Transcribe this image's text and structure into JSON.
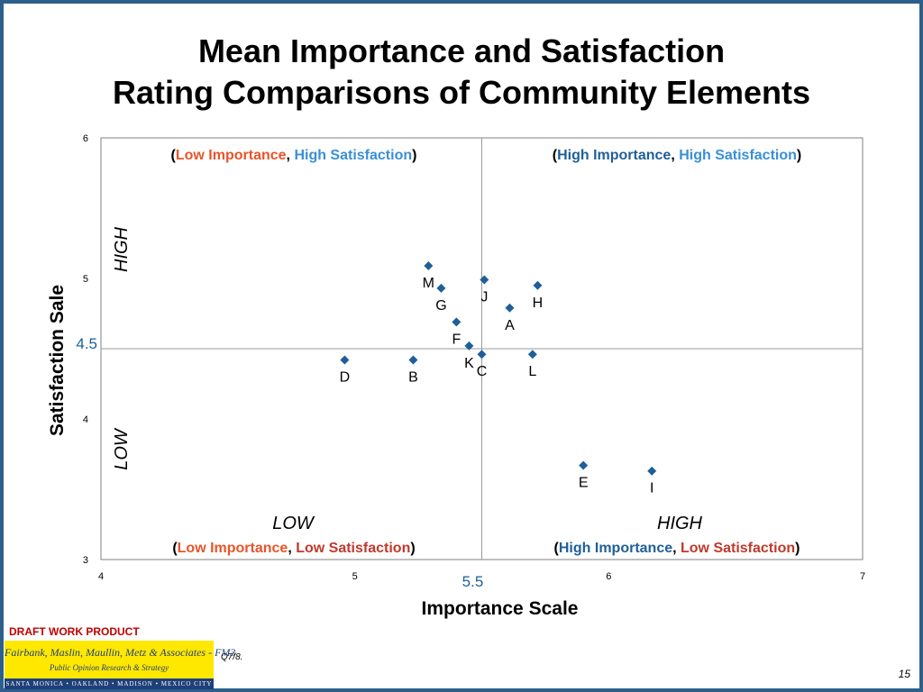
{
  "slide": {
    "title_line1": "Mean Importance and Satisfaction",
    "title_line2": "Rating Comparisons of Community Elements",
    "draft_label": "DRAFT WORK PRODUCT",
    "footnote": "Q7/8.",
    "page_number": "15",
    "logo": {
      "firm": "Fairbank, Maslin, Maullin, Metz & Associates - FM3",
      "tagline": "Public Opinion Research & Strategy",
      "cities": "SANTA MONICA • OAKLAND • MADISON • MEXICO CITY"
    }
  },
  "colors": {
    "marker": "#1f5f99",
    "low": "#e8552a",
    "high_importance": "#1f5f99",
    "high_satisfaction": "#3a8fd6",
    "low_satisfaction": "#c0392b",
    "midline_value_label": "#1f5f99"
  },
  "chart_data": {
    "type": "scatter",
    "xlabel": "Importance Scale",
    "ylabel": "Satisfaction Sale",
    "xlim": [
      4,
      7
    ],
    "ylim": [
      3,
      6
    ],
    "xticks": [
      "4",
      "5",
      "6",
      "7"
    ],
    "yticks": [
      "3",
      "4",
      "5",
      "6"
    ],
    "grid": false,
    "reference_lines": {
      "x": 5.5,
      "y": 4.5,
      "x_label": "5.5",
      "y_label": "4.5"
    },
    "axis_annotations": {
      "y_high": "HIGH",
      "y_low": "LOW",
      "x_low": "LOW",
      "x_high": "HIGH"
    },
    "quadrants": {
      "top_left": {
        "open": "(",
        "importance": "Low Importance",
        "sep": ", ",
        "satisfaction": "High Satisfaction",
        "close": ")"
      },
      "top_right": {
        "open": "(",
        "importance": "High Importance",
        "sep": ", ",
        "satisfaction": "High Satisfaction",
        "close": ")"
      },
      "bottom_left": {
        "open": "(",
        "importance": "Low Importance",
        "sep": ", ",
        "satisfaction": "Low Satisfaction",
        "close": ")"
      },
      "bottom_right": {
        "open": "(",
        "importance": "High Importance",
        "sep": ", ",
        "satisfaction": "Low Satisfaction",
        "close": ")"
      }
    },
    "points": [
      {
        "label": "M",
        "x": 5.29,
        "y": 5.09
      },
      {
        "label": "G",
        "x": 5.34,
        "y": 4.93
      },
      {
        "label": "J",
        "x": 5.51,
        "y": 4.99
      },
      {
        "label": "H",
        "x": 5.72,
        "y": 4.95
      },
      {
        "label": "A",
        "x": 5.61,
        "y": 4.79
      },
      {
        "label": "F",
        "x": 5.4,
        "y": 4.69
      },
      {
        "label": "K",
        "x": 5.45,
        "y": 4.52
      },
      {
        "label": "C",
        "x": 5.5,
        "y": 4.46
      },
      {
        "label": "L",
        "x": 5.7,
        "y": 4.46
      },
      {
        "label": "D",
        "x": 4.96,
        "y": 4.42
      },
      {
        "label": "B",
        "x": 5.23,
        "y": 4.42
      },
      {
        "label": "E",
        "x": 5.9,
        "y": 3.67
      },
      {
        "label": "I",
        "x": 6.17,
        "y": 3.63
      }
    ]
  }
}
